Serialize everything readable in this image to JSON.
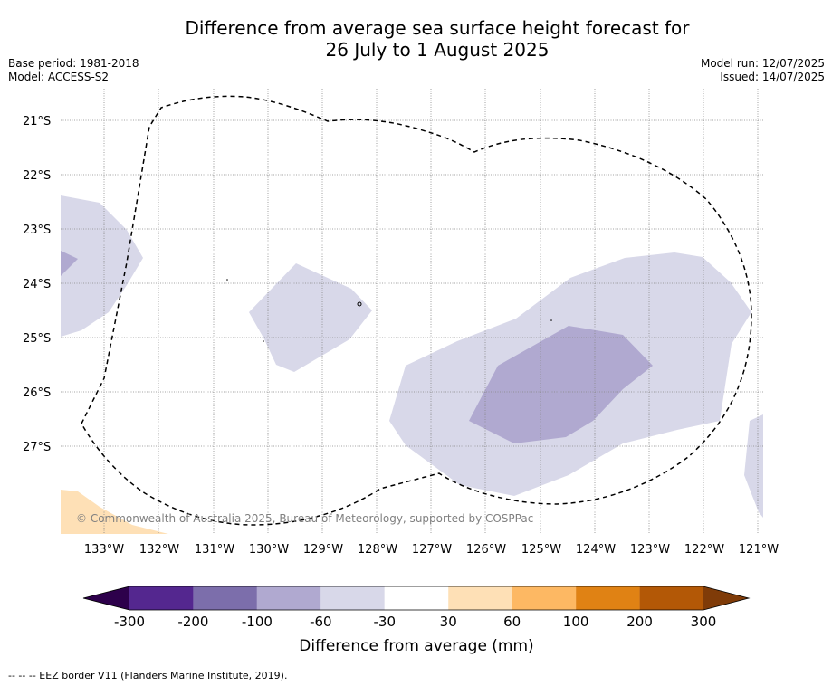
{
  "header": {
    "title_line1": "Difference from average sea surface height forecast for",
    "title_line2": "26 July to 1 August 2025",
    "base_period": "Base period: 1981-2018",
    "model": "Model: ACCESS-S2",
    "model_run": "Model run: 12/07/2025",
    "issued": "Issued: 14/07/2025"
  },
  "map": {
    "copyright": "© Commonwealth of Australia 2025, Bureau of Meteorology, supported by COSPPac",
    "lat_ticks": [
      "21°S",
      "22°S",
      "23°S",
      "24°S",
      "25°S",
      "26°S",
      "27°S"
    ],
    "lon_ticks": [
      "133°W",
      "132°W",
      "131°W",
      "130°W",
      "129°W",
      "128°W",
      "127°W",
      "126°W",
      "125°W",
      "124°W",
      "123°W",
      "122°W",
      "121°W"
    ],
    "colors": {
      "neg_30_60": "#d8d8e9",
      "neg_60_100": "#b0a9d0",
      "pos_30_60": "#fee0b6",
      "eez_border": "#000000"
    }
  },
  "colorbar": {
    "title": "Difference from average (mm)",
    "labels": [
      "-300",
      "-200",
      "-100",
      "-60",
      "-30",
      "30",
      "60",
      "100",
      "200",
      "300"
    ],
    "colors": [
      "#54278f",
      "#7c6eab",
      "#b0a9d0",
      "#d8d8e9",
      "#ffffff",
      "#fee0b6",
      "#fdb863",
      "#e08214",
      "#b35806"
    ],
    "extend_low": "#2d004b",
    "extend_high": "#7f3b08"
  },
  "footnote": "--  --  -- EEZ border V11 (Flanders Marine Institute, 2019)."
}
